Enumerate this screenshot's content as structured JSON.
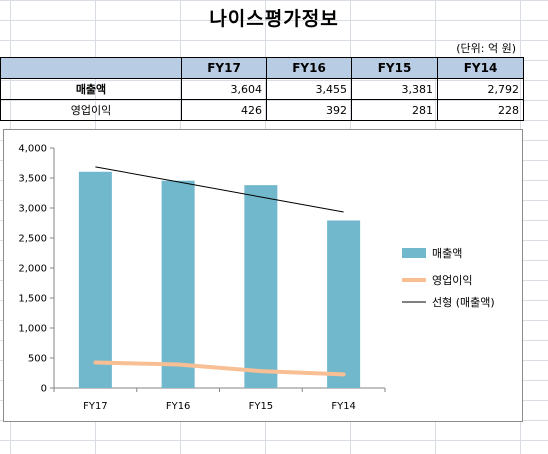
{
  "sheet": {
    "title": "나이스평가정보",
    "unit": "(단위: 억 원)"
  },
  "table": {
    "headers": [
      "",
      "FY17",
      "FY16",
      "FY15",
      "FY14"
    ],
    "rows": [
      {
        "label": "매출액",
        "values": [
          "3,604",
          "3,455",
          "3,381",
          "2,792"
        ]
      },
      {
        "label": "영업이익",
        "values": [
          "426",
          "392",
          "281",
          "228"
        ]
      }
    ]
  },
  "chart_data": {
    "type": "bar",
    "categories": [
      "FY17",
      "FY16",
      "FY15",
      "FY14"
    ],
    "series": [
      {
        "name": "매출액",
        "kind": "bar",
        "color": "#71b8cd",
        "values": [
          3604,
          3455,
          3381,
          2792
        ]
      },
      {
        "name": "영업이익",
        "kind": "line",
        "color": "#f9bf94",
        "values": [
          426,
          392,
          281,
          228
        ]
      },
      {
        "name": "선형 (매출액)",
        "kind": "trendline",
        "color": "#000000",
        "values": [
          3686,
          3435,
          3184,
          2933
        ]
      }
    ],
    "ylim": [
      0,
      4000
    ],
    "yticks": [
      "0",
      "500",
      "1,000",
      "1,500",
      "2,000",
      "2,500",
      "3,000",
      "3,500",
      "4,000"
    ],
    "ytick_values": [
      0,
      500,
      1000,
      1500,
      2000,
      2500,
      3000,
      3500,
      4000
    ],
    "grid": false,
    "legend_position": "right"
  }
}
